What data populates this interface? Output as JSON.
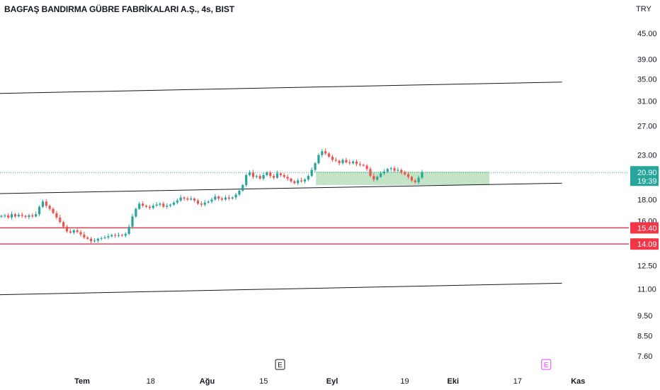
{
  "header": {
    "title": "BAGFAŞ BANDIRMA GÜBRE FABRİKALARI A.Ş., 4s, BIST"
  },
  "colors": {
    "up": "#26a69a",
    "down": "#ef5350",
    "line": "#131722",
    "support": "#f23645",
    "zone": "#a5d6a7",
    "current_price_bg": "#26a69a",
    "event_marker_pink": "#e040fb",
    "event_marker_dark": "#131722"
  },
  "chart_data": {
    "type": "candlestick",
    "title": "BAGFAŞ BANDIRMA GÜBRE FABRİKALARI A.Ş., 4s, BIST",
    "currency": "TRY",
    "y_scale": "log",
    "ylim": [
      7.2,
      49
    ],
    "price_ticks": [
      "45.00",
      "39.00",
      "35.00",
      "31.00",
      "27.00",
      "23.00",
      "18.00",
      "16.00",
      "12.50",
      "11.00",
      "9.50",
      "8.50",
      "7.60"
    ],
    "time_ticks": [
      {
        "label": "Tem",
        "bold": true
      },
      {
        "label": "18",
        "bold": false
      },
      {
        "label": "Ağu",
        "bold": true
      },
      {
        "label": "15",
        "bold": false
      },
      {
        "label": "Eyl",
        "bold": true
      },
      {
        "label": "19",
        "bold": false
      },
      {
        "label": "Eki",
        "bold": true
      },
      {
        "label": "17",
        "bold": false
      },
      {
        "label": "Kas",
        "bold": true
      }
    ],
    "current_price": {
      "label": "20.90",
      "countdown": "19:39",
      "value": 20.9
    },
    "horizontal_levels": [
      {
        "label": "15.40",
        "value": 15.4
      },
      {
        "label": "14.09",
        "value": 14.09
      }
    ],
    "trend_lines": [
      {
        "name": "upper channel",
        "from": {
          "date": "2024-06-10",
          "price": 32.3
        },
        "to": {
          "date": "2024-10-28",
          "price": 34.4
        }
      },
      {
        "name": "middle channel",
        "from": {
          "date": "2024-06-10",
          "price": 18.6
        },
        "to": {
          "date": "2024-10-28",
          "price": 19.7
        }
      },
      {
        "name": "lower channel",
        "from": {
          "date": "2024-06-10",
          "price": 10.65
        },
        "to": {
          "date": "2024-10-28",
          "price": 11.35
        }
      }
    ],
    "zones": [
      {
        "name": "support zone",
        "from_date": "2024-08-28",
        "to_date": "2024-10-10",
        "low": 19.5,
        "high": 21.0
      }
    ],
    "events": [
      {
        "label": "E",
        "date": "2024-08-19",
        "style": "dark"
      },
      {
        "label": "E",
        "date": "2024-10-24",
        "style": "pink"
      }
    ],
    "closes": [
      16.45,
      16.5,
      16.3,
      16.6,
      16.4,
      16.55,
      16.45,
      16.35,
      16.5,
      16.4,
      16.6,
      17.3,
      17.8,
      17.4,
      17.1,
      16.7,
      16.3,
      15.9,
      15.5,
      15.1,
      15.0,
      15.2,
      15.05,
      14.85,
      14.6,
      14.5,
      14.3,
      14.35,
      14.5,
      14.55,
      14.6,
      14.7,
      14.8,
      14.75,
      14.8,
      14.75,
      14.9,
      15.5,
      16.4,
      17.1,
      17.6,
      17.4,
      17.3,
      17.2,
      17.4,
      17.5,
      17.6,
      17.3,
      17.4,
      17.5,
      17.7,
      17.9,
      18.2,
      18.1,
      18.0,
      18.1,
      17.9,
      17.6,
      17.5,
      17.7,
      17.8,
      18.0,
      18.3,
      18.1,
      18.0,
      18.2,
      18.1,
      18.2,
      18.5,
      18.9,
      19.5,
      20.6,
      20.9,
      20.4,
      20.5,
      20.2,
      20.6,
      20.9,
      20.5,
      20.3,
      20.8,
      20.6,
      20.4,
      20.2,
      19.9,
      19.7,
      20.0,
      19.9,
      20.1,
      20.5,
      21.2,
      22.0,
      23.0,
      23.5,
      23.2,
      22.8,
      22.4,
      22.3,
      22.0,
      22.4,
      22.1,
      22.0,
      22.2,
      21.9,
      21.8,
      21.7,
      21.3,
      20.5,
      20.1,
      20.4,
      20.8,
      21.0,
      21.3,
      21.4,
      21.1,
      21.2,
      20.9,
      20.7,
      20.4,
      20.0,
      19.8,
      20.3,
      20.9
    ]
  }
}
